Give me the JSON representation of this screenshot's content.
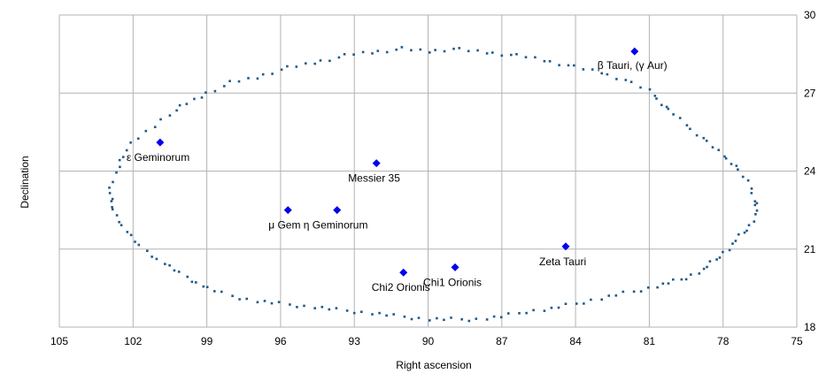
{
  "chart_data": {
    "type": "scatter",
    "xlabel": "Right ascension",
    "ylabel": "Declination",
    "xlim": [
      105,
      75
    ],
    "ylim": [
      18,
      30
    ],
    "x_ticks": [
      "105",
      "102",
      "99",
      "96",
      "93",
      "90",
      "87",
      "84",
      "81",
      "78",
      "75"
    ],
    "y_ticks": [
      "18",
      "21",
      "24",
      "27",
      "30"
    ],
    "grid": true,
    "colors": {
      "boundary": "#1f5a8a",
      "star": "#0000ee",
      "grid": "#b3b3b3"
    },
    "boundary": [
      [
        102.9,
        23.3
      ],
      [
        102.6,
        24.2
      ],
      [
        102.3,
        24.8
      ],
      [
        101.5,
        25.5
      ],
      [
        100.5,
        26.2
      ],
      [
        99.8,
        26.6
      ],
      [
        99,
        27.0
      ],
      [
        98,
        27.4
      ],
      [
        97,
        27.6
      ],
      [
        96,
        27.9
      ],
      [
        95,
        28.1
      ],
      [
        94,
        28.3
      ],
      [
        93,
        28.5
      ],
      [
        92,
        28.6
      ],
      [
        91,
        28.7
      ],
      [
        90,
        28.6
      ],
      [
        89,
        28.7
      ],
      [
        88,
        28.6
      ],
      [
        87,
        28.5
      ],
      [
        86,
        28.4
      ],
      [
        85,
        28.2
      ],
      [
        84,
        28.0
      ],
      [
        83,
        27.8
      ],
      [
        82,
        27.5
      ],
      [
        81,
        27.1
      ],
      [
        80.5,
        26.6
      ],
      [
        80,
        26.2
      ],
      [
        79.3,
        25.6
      ],
      [
        78.6,
        25.1
      ],
      [
        78,
        24.6
      ],
      [
        77.5,
        24.2
      ],
      [
        77,
        23.6
      ],
      [
        76.7,
        22.9
      ],
      [
        76.6,
        22.5
      ],
      [
        76.9,
        21.9
      ],
      [
        77.3,
        21.5
      ],
      [
        77.8,
        21.0
      ],
      [
        78.3,
        20.6
      ],
      [
        78.8,
        20.2
      ],
      [
        79.5,
        19.9
      ],
      [
        80.2,
        19.7
      ],
      [
        81,
        19.5
      ],
      [
        82,
        19.3
      ],
      [
        83,
        19.1
      ],
      [
        84,
        18.9
      ],
      [
        85,
        18.7
      ],
      [
        86,
        18.6
      ],
      [
        87,
        18.4
      ],
      [
        88,
        18.3
      ],
      [
        89,
        18.3
      ],
      [
        90,
        18.3
      ],
      [
        91,
        18.4
      ],
      [
        92,
        18.5
      ],
      [
        93,
        18.6
      ],
      [
        94,
        18.7
      ],
      [
        95,
        18.8
      ],
      [
        96,
        18.9
      ],
      [
        97,
        19.0
      ],
      [
        98,
        19.2
      ],
      [
        99,
        19.5
      ],
      [
        99.6,
        19.8
      ],
      [
        100.3,
        20.2
      ],
      [
        101,
        20.6
      ],
      [
        101.7,
        21.1
      ],
      [
        102.3,
        21.7
      ],
      [
        102.7,
        22.3
      ],
      [
        102.9,
        22.8
      ]
    ],
    "stars": [
      {
        "name": "β Tauri, (γ Aur)",
        "x": 81.6,
        "y": 28.6,
        "label_dx": -42,
        "label_dy": 20
      },
      {
        "name": "ε Geminorum",
        "x": 100.9,
        "y": 25.1,
        "label_dx": -38,
        "label_dy": 21
      },
      {
        "name": "Messier 35",
        "x": 92.1,
        "y": 24.3,
        "label_dx": -32,
        "label_dy": 21
      },
      {
        "name": "μ Gem",
        "x": 95.7,
        "y": 22.5,
        "label_dx": -22,
        "label_dy": 21
      },
      {
        "name": "η Geminorum",
        "x": 93.7,
        "y": 22.5,
        "label_dx": -38,
        "label_dy": 21
      },
      {
        "name": "Zeta Tauri",
        "x": 84.4,
        "y": 21.1,
        "label_dx": -30,
        "label_dy": 21
      },
      {
        "name": "Chi2 Orionis",
        "x": 91.0,
        "y": 20.1,
        "label_dx": -36,
        "label_dy": 21
      },
      {
        "name": "Chi1 Orionis",
        "x": 88.9,
        "y": 20.3,
        "label_dx": -36,
        "label_dy": 21
      }
    ]
  }
}
